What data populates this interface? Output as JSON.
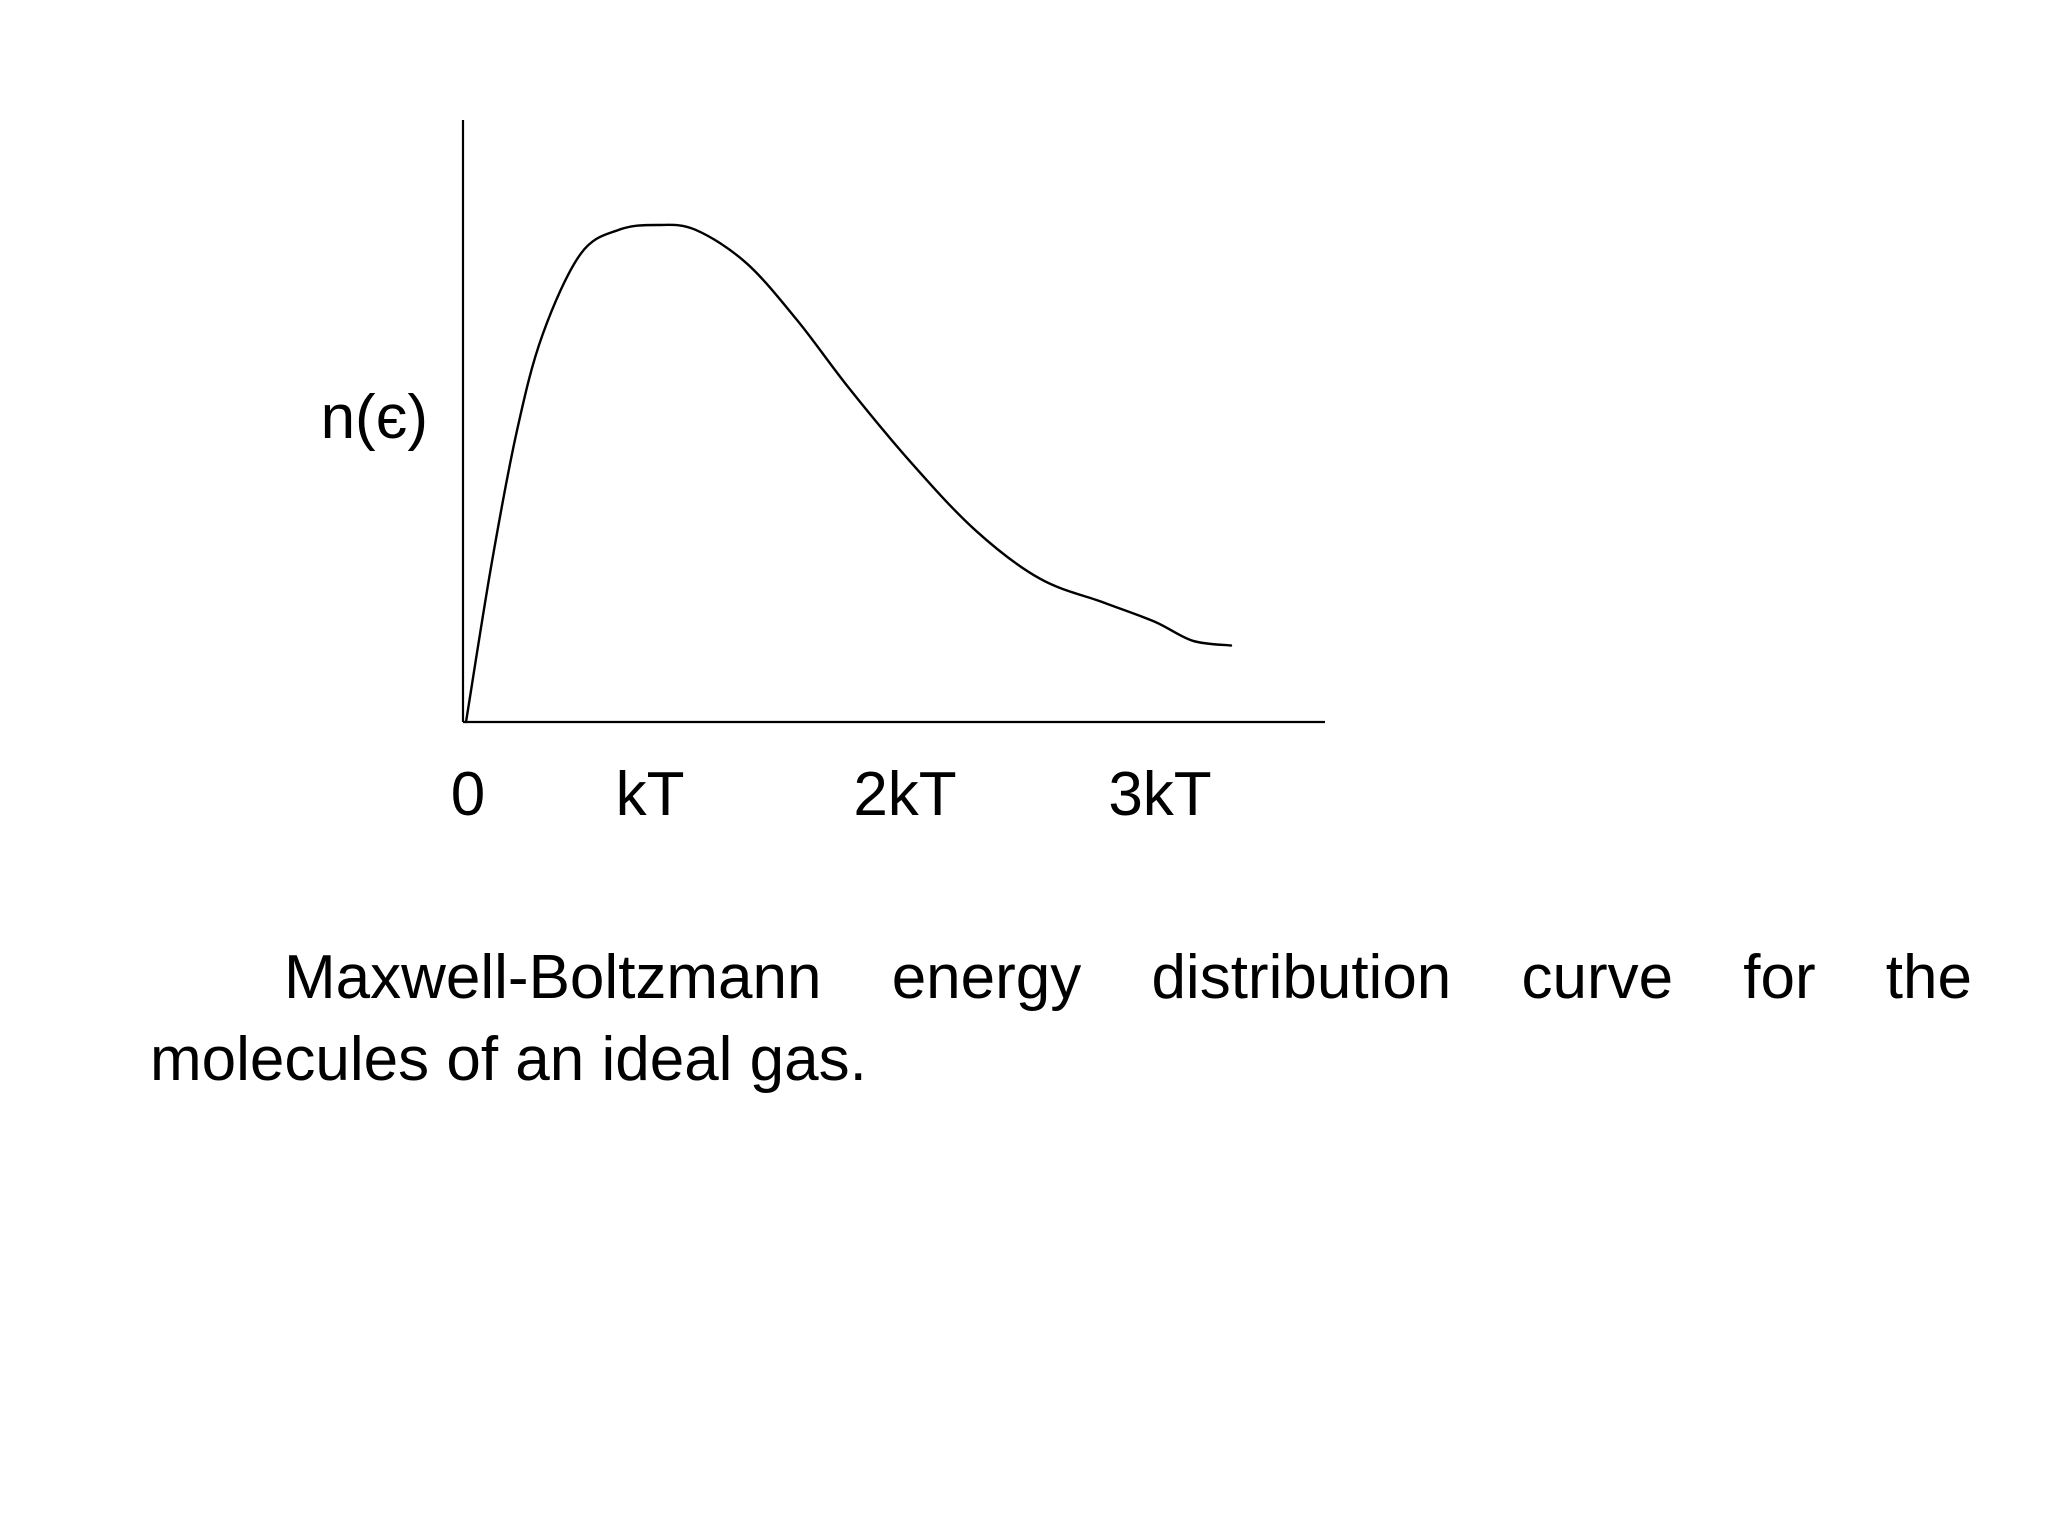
{
  "chart_data": {
    "type": "line",
    "title": "",
    "xlabel": "",
    "ylabel": "n(є)",
    "x_ticks": [
      {
        "value": 0,
        "label": "0"
      },
      {
        "value": 1,
        "label": "kT"
      },
      {
        "value": 2,
        "label": "2kT"
      },
      {
        "value": 3,
        "label": "3kT"
      }
    ],
    "xlim": [
      0,
      3.7
    ],
    "ylim": [
      0,
      1.2
    ],
    "grid": false,
    "series": [
      {
        "name": "",
        "x": [
          0,
          0.1,
          0.2,
          0.3,
          0.45,
          0.6,
          0.75,
          0.9,
          1.1,
          1.3,
          1.5,
          1.75,
          2.0,
          2.25,
          2.5,
          2.7,
          2.85,
          3.0
        ],
        "y": [
          0,
          0.33,
          0.61,
          0.81,
          0.98,
          1.03,
          1.04,
          1.03,
          0.96,
          0.84,
          0.7,
          0.54,
          0.4,
          0.3,
          0.25,
          0.21,
          0.17,
          0.16
        ]
      }
    ]
  },
  "caption": "Maxwell-Boltzmann energy distribution curve for the molecules of an ideal gas."
}
